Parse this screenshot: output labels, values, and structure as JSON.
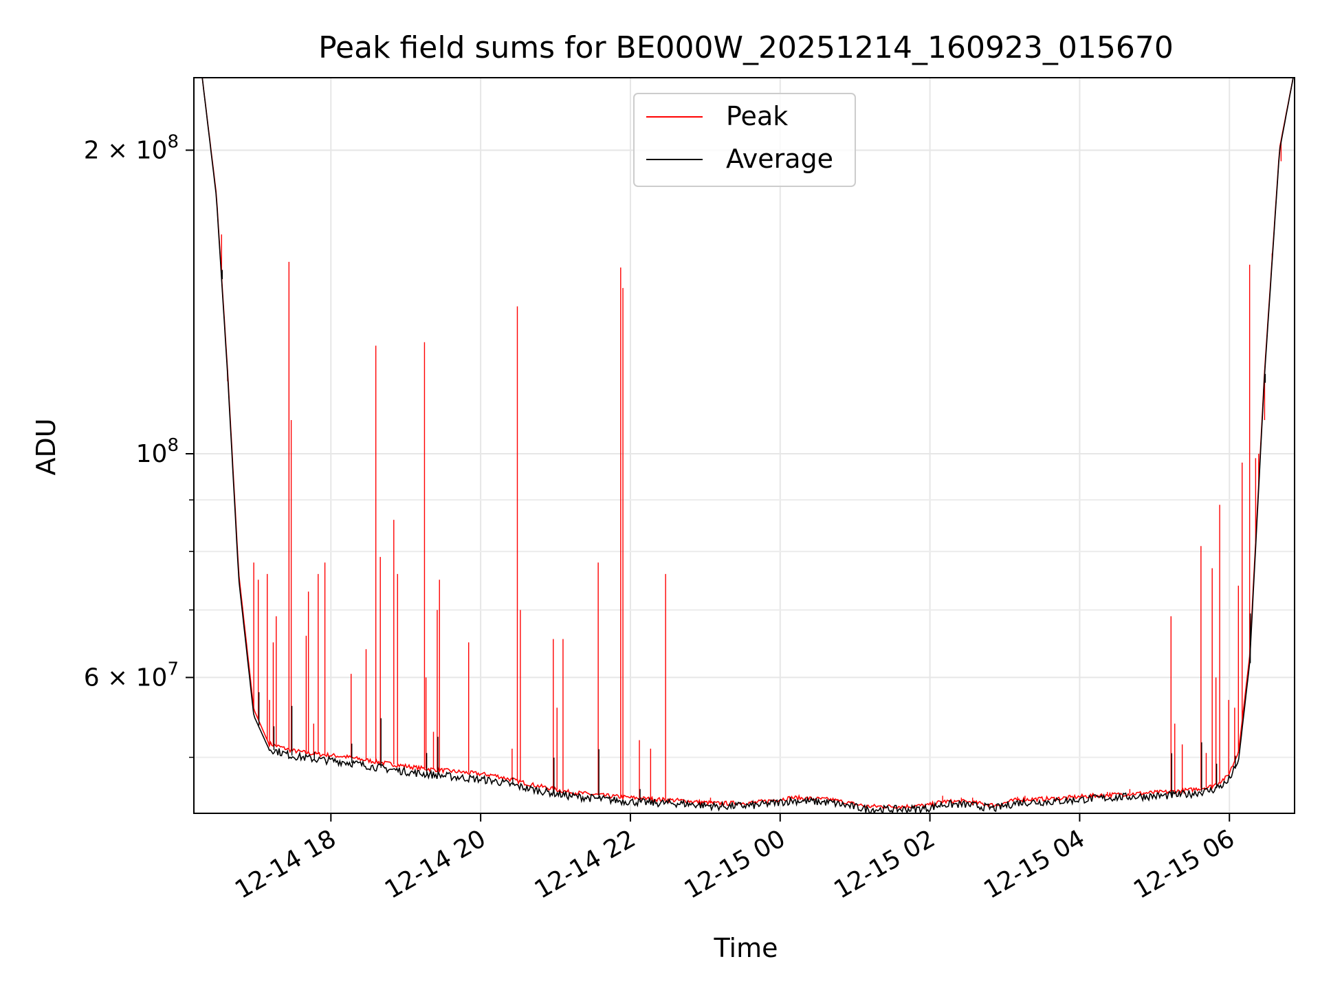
{
  "chart_data": {
    "type": "line",
    "title": "Peak field sums for BE000W_20251214_160923_015670",
    "xlabel": "Time",
    "ylabel": "ADU",
    "yscale": "log",
    "xlim_hours_from_start": [
      0,
      14.7
    ],
    "ylim": [
      44000000,
      236000000
    ],
    "grid": true,
    "legend_position": "upper center",
    "legend": [
      {
        "name": "Peak",
        "color": "#ff0000"
      },
      {
        "name": "Average",
        "color": "#000000"
      }
    ],
    "x_ticks": [
      {
        "label": "12-14 18",
        "hours": 1.83
      },
      {
        "label": "12-14 20",
        "hours": 3.83
      },
      {
        "label": "12-14 22",
        "hours": 5.83
      },
      {
        "label": "12-15 00",
        "hours": 7.83
      },
      {
        "label": "12-15 02",
        "hours": 9.83
      },
      {
        "label": "12-15 04",
        "hours": 11.83
      },
      {
        "label": "12-15 06",
        "hours": 13.83
      }
    ],
    "y_ticks": [
      {
        "value": 200000000,
        "base": "2 × 10",
        "exp": "8"
      },
      {
        "value": 100000000,
        "base": "10",
        "exp": "8"
      },
      {
        "value": 60000000,
        "base": "6 × 10",
        "exp": "7"
      }
    ],
    "y_minor_ticks": [
      50000000,
      70000000,
      80000000,
      90000000
    ],
    "series": [
      {
        "name": "Average",
        "color": "#000000",
        "hours": [
          0.1,
          0.3,
          0.45,
          0.6,
          0.8,
          1.0,
          1.3,
          1.6,
          2.0,
          2.5,
          3.0,
          3.5,
          4.0,
          4.5,
          5.0,
          5.5,
          6.0,
          6.5,
          7.0,
          7.5,
          8.0,
          8.5,
          9.0,
          9.5,
          9.8,
          10.0,
          10.3,
          10.7,
          11.0,
          11.5,
          12.0,
          12.5,
          13.0,
          13.3,
          13.6,
          13.8,
          13.95,
          14.1,
          14.3,
          14.5,
          14.7
        ],
        "values": [
          240000000,
          180000000,
          120000000,
          75000000,
          55000000,
          51000000,
          50200000,
          49800000,
          49500000,
          48800000,
          48200000,
          47800000,
          47400000,
          46500000,
          45800000,
          45400000,
          45100000,
          45000000,
          44700000,
          44800000,
          45300000,
          45100000,
          44400000,
          44400000,
          44500000,
          44900000,
          44900000,
          44500000,
          45100000,
          45200000,
          45500000,
          45700000,
          45800000,
          46000000,
          46400000,
          47200000,
          49500000,
          62000000,
          120000000,
          200000000,
          240000000
        ]
      },
      {
        "name": "Peak",
        "color": "#ff0000",
        "hours": [
          0.1,
          0.3,
          0.45,
          0.6,
          0.8,
          1.0,
          1.3,
          1.6,
          2.0,
          2.5,
          3.0,
          3.5,
          4.0,
          4.5,
          5.0,
          5.5,
          6.0,
          6.5,
          7.0,
          7.5,
          8.0,
          8.5,
          9.0,
          9.5,
          9.8,
          10.0,
          10.3,
          10.7,
          11.0,
          11.5,
          12.0,
          12.5,
          13.0,
          13.3,
          13.6,
          13.8,
          13.95,
          14.1,
          14.3,
          14.5,
          14.7
        ],
        "values": [
          240000000,
          181000000,
          121000000,
          76000000,
          55800000,
          51600000,
          50800000,
          50400000,
          50100000,
          49400000,
          48800000,
          48400000,
          48000000,
          47000000,
          46200000,
          45800000,
          45500000,
          45300000,
          45000000,
          45100000,
          45600000,
          45400000,
          44700000,
          44700000,
          44800000,
          45200000,
          45200000,
          44800000,
          45400000,
          45500000,
          45800000,
          46000000,
          46200000,
          46400000,
          46800000,
          47800000,
          50500000,
          63000000,
          121000000,
          201000000,
          240000000
        ],
        "spikes": [
          {
            "hours": 0.37,
            "value": 165000000
          },
          {
            "hours": 0.45,
            "value": 118000000
          },
          {
            "hours": 0.8,
            "value": 78000000
          },
          {
            "hours": 0.86,
            "value": 75000000
          },
          {
            "hours": 0.98,
            "value": 76000000
          },
          {
            "hours": 1.01,
            "value": 57000000
          },
          {
            "hours": 1.06,
            "value": 65000000
          },
          {
            "hours": 1.1,
            "value": 69000000
          },
          {
            "hours": 1.27,
            "value": 155000000
          },
          {
            "hours": 1.3,
            "value": 108000000
          },
          {
            "hours": 1.5,
            "value": 66000000
          },
          {
            "hours": 1.53,
            "value": 73000000
          },
          {
            "hours": 1.6,
            "value": 54000000
          },
          {
            "hours": 1.66,
            "value": 76000000
          },
          {
            "hours": 1.75,
            "value": 78000000
          },
          {
            "hours": 2.1,
            "value": 60500000
          },
          {
            "hours": 2.3,
            "value": 64000000
          },
          {
            "hours": 2.43,
            "value": 128000000
          },
          {
            "hours": 2.49,
            "value": 79000000
          },
          {
            "hours": 2.67,
            "value": 86000000
          },
          {
            "hours": 2.72,
            "value": 76000000
          },
          {
            "hours": 3.1,
            "value": 60000000
          },
          {
            "hours": 3.08,
            "value": 129000000
          },
          {
            "hours": 3.2,
            "value": 53000000
          },
          {
            "hours": 3.25,
            "value": 70000000
          },
          {
            "hours": 3.28,
            "value": 75000000
          },
          {
            "hours": 3.67,
            "value": 65000000
          },
          {
            "hours": 4.25,
            "value": 51000000
          },
          {
            "hours": 4.32,
            "value": 140000000
          },
          {
            "hours": 4.36,
            "value": 70000000
          },
          {
            "hours": 4.8,
            "value": 65500000
          },
          {
            "hours": 4.85,
            "value": 56000000
          },
          {
            "hours": 4.93,
            "value": 65500000
          },
          {
            "hours": 5.4,
            "value": 78000000
          },
          {
            "hours": 5.7,
            "value": 153000000
          },
          {
            "hours": 5.73,
            "value": 146000000
          },
          {
            "hours": 5.95,
            "value": 52000000
          },
          {
            "hours": 6.1,
            "value": 51000000
          },
          {
            "hours": 6.3,
            "value": 76000000
          },
          {
            "hours": 6.9,
            "value": 45600000
          },
          {
            "hours": 10.0,
            "value": 45800000
          },
          {
            "hours": 10.25,
            "value": 45600000
          },
          {
            "hours": 10.4,
            "value": 45600000
          },
          {
            "hours": 11.0,
            "value": 45700000
          },
          {
            "hours": 11.1,
            "value": 45800000
          },
          {
            "hours": 11.7,
            "value": 45700000
          },
          {
            "hours": 12.2,
            "value": 46200000
          },
          {
            "hours": 12.5,
            "value": 46500000
          },
          {
            "hours": 13.05,
            "value": 69000000
          },
          {
            "hours": 13.1,
            "value": 54000000
          },
          {
            "hours": 13.2,
            "value": 51500000
          },
          {
            "hours": 13.45,
            "value": 81000000
          },
          {
            "hours": 13.52,
            "value": 50500000
          },
          {
            "hours": 13.6,
            "value": 77000000
          },
          {
            "hours": 13.65,
            "value": 60000000
          },
          {
            "hours": 13.7,
            "value": 89000000
          },
          {
            "hours": 13.82,
            "value": 57000000
          },
          {
            "hours": 13.9,
            "value": 56000000
          },
          {
            "hours": 13.95,
            "value": 74000000
          },
          {
            "hours": 14.0,
            "value": 98000000
          },
          {
            "hours": 14.1,
            "value": 154000000
          },
          {
            "hours": 14.18,
            "value": 99000000
          },
          {
            "hours": 14.22,
            "value": 100000000
          },
          {
            "hours": 14.3,
            "value": 108000000
          },
          {
            "hours": 14.4,
            "value": 158000000
          },
          {
            "hours": 14.52,
            "value": 195000000
          }
        ]
      }
    ]
  }
}
